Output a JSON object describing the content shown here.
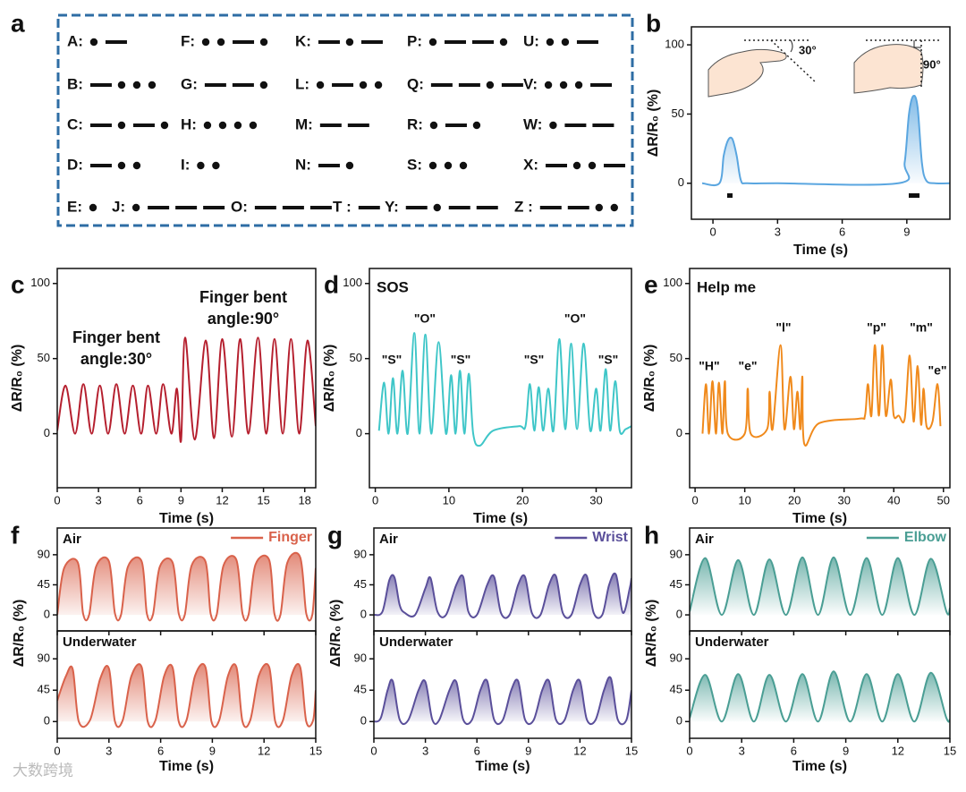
{
  "morse": {
    "panel_label": "a",
    "entries": [
      {
        "label": "A:",
        "code": ".-"
      },
      {
        "label": "B:",
        "code": "-..."
      },
      {
        "label": "C:",
        "code": "-.-."
      },
      {
        "label": "D:",
        "code": "-.."
      },
      {
        "label": "F:",
        "code": "..-."
      },
      {
        "label": "G:",
        "code": "--."
      },
      {
        "label": "H:",
        "code": "...."
      },
      {
        "label": "I:",
        "code": ".."
      },
      {
        "label": "K:",
        "code": "-.-"
      },
      {
        "label": "L:",
        "code": ".-.."
      },
      {
        "label": "M:",
        "code": "--"
      },
      {
        "label": "N:",
        "code": "-."
      },
      {
        "label": "P:",
        "code": ".--."
      },
      {
        "label": "Q:",
        "code": "--.-"
      },
      {
        "label": "R:",
        "code": ".-."
      },
      {
        "label": "S:",
        "code": "..."
      },
      {
        "label": "U:",
        "code": "..-"
      },
      {
        "label": "V:",
        "code": "...-"
      },
      {
        "label": "W:",
        "code": ".--"
      },
      {
        "label": "X:",
        "code": "-..-"
      },
      {
        "label": "E:",
        "code": "."
      },
      {
        "label": "J:",
        "code": ".---"
      },
      {
        "label": "O:",
        "code": "---"
      },
      {
        "label": "T :",
        "code": "-"
      },
      {
        "label": "Y:",
        "code": "-.--"
      },
      {
        "label": "Z :",
        "code": "--.."
      }
    ]
  },
  "watermark": "大数跨境",
  "chart_data": [
    {
      "type": "line",
      "panel_label": "b",
      "color": "#5aa6e0",
      "fill": true,
      "xlabel": "Time (s)",
      "ylabel": "ΔR/R₀ (%)",
      "xlim": [
        -1,
        11
      ],
      "xticks": [
        0,
        3,
        6,
        9
      ],
      "ylim": [
        -26,
        113
      ],
      "yticks": [
        0,
        50,
        100
      ],
      "angles": [
        "30°",
        "90°"
      ],
      "x": [
        -0.5,
        0.3,
        0.5,
        0.7,
        0.9,
        1.1,
        1.3,
        1.6,
        3,
        8.6,
        8.9,
        9.1,
        9.3,
        9.5,
        9.7,
        9.9,
        10.3,
        11
      ],
      "values": [
        0,
        0,
        20,
        31,
        32,
        20,
        2,
        0,
        0,
        0,
        15,
        50,
        63,
        55,
        15,
        2,
        0,
        0
      ]
    },
    {
      "type": "line",
      "panel_label": "c",
      "color": "#b51f2e",
      "xlabel": "Time (s)",
      "ylabel": "ΔR/R₀ (%)",
      "xlim": [
        0,
        18.8
      ],
      "xticks": [
        0,
        3,
        6,
        9,
        12,
        15,
        18
      ],
      "ylim": [
        -36,
        110
      ],
      "yticks": [
        0,
        50,
        100
      ],
      "annotations": [
        [
          "Finger bent",
          "angle:30°"
        ],
        [
          "Finger bent",
          "angle:90°"
        ]
      ],
      "x": [
        0,
        0.6,
        1.3,
        1.9,
        2.5,
        3.1,
        3.7,
        4.3,
        4.9,
        5.5,
        6.1,
        6.6,
        7.2,
        7.7,
        8.3,
        8.7,
        9.0,
        9.3,
        10.0,
        10.8,
        11.4,
        12.0,
        12.7,
        13.3,
        13.9,
        14.6,
        15.2,
        15.8,
        16.4,
        17.0,
        17.6,
        18.2,
        18.8
      ],
      "values": [
        2,
        32,
        0,
        33,
        0,
        32,
        0,
        33,
        0,
        32,
        0,
        32,
        0,
        33,
        0,
        30,
        -5,
        64,
        -4,
        62,
        -3,
        63,
        -2,
        63,
        0,
        64,
        0,
        63,
        0,
        63,
        0,
        62,
        5
      ]
    },
    {
      "type": "line",
      "panel_label": "d",
      "title": "SOS",
      "color": "#3fc6c8",
      "xlabel": "Time (s)",
      "ylabel": "ΔR/R₀ (%)",
      "xlim": [
        -0.8,
        34.8
      ],
      "xticks": [
        0,
        10,
        20,
        30
      ],
      "ylim": [
        -36,
        110
      ],
      "yticks": [
        0,
        50,
        100
      ],
      "annotations": [
        "\"S\"",
        "\"O\"",
        "\"S\"",
        "\"S\"",
        "\"O\"",
        "\"S\""
      ],
      "x": [
        0.5,
        1.2,
        1.8,
        2.4,
        3.0,
        3.7,
        4.4,
        5.3,
        6.0,
        6.8,
        7.6,
        8.6,
        9.6,
        10.3,
        10.9,
        11.5,
        12.1,
        12.7,
        13.3,
        14.2,
        16,
        19.5,
        20.4,
        21.0,
        21.6,
        22.2,
        22.8,
        23.5,
        24.2,
        25.0,
        25.8,
        26.6,
        27.4,
        28.3,
        29.2,
        30.0,
        30.6,
        31.3,
        31.9,
        32.6,
        33.2,
        34.0,
        34.8
      ],
      "values": [
        2,
        34,
        0,
        37,
        0,
        42,
        0,
        67,
        0,
        66,
        0,
        61,
        0,
        39,
        0,
        42,
        0,
        40,
        0,
        -8,
        2,
        5,
        5,
        33,
        2,
        31,
        2,
        30,
        2,
        63,
        3,
        60,
        3,
        60,
        2,
        30,
        2,
        43,
        2,
        35,
        2,
        3,
        5
      ]
    },
    {
      "type": "line",
      "panel_label": "e",
      "title": "Help me",
      "color": "#f08a1c",
      "xlabel": "Time (s)",
      "ylabel": "ΔR/R₀ (%)",
      "xlim": [
        -1.1,
        51.3
      ],
      "xticks": [
        0,
        10,
        20,
        30,
        40,
        50
      ],
      "ylim": [
        -36,
        110
      ],
      "yticks": [
        0,
        50,
        100
      ],
      "annotations": [
        "\"H\"",
        "\"e\"",
        "\"l\"",
        "\"p\"",
        "\"m\"",
        "\"e\""
      ],
      "x": [
        1.5,
        2.2,
        2.8,
        3.5,
        4.2,
        4.8,
        5.5,
        6.0,
        6.6,
        10.0,
        10.6,
        11.2,
        14.5,
        15.0,
        15.6,
        17.2,
        18.0,
        19.2,
        19.9,
        20.6,
        21.2,
        21.6,
        22,
        25,
        33,
        34.2,
        34.8,
        35.5,
        36.2,
        37.0,
        37.7,
        38.4,
        39.4,
        40.0,
        41.0,
        42.2,
        43.2,
        44.0,
        44.8,
        45.5,
        46.0,
        46.6,
        47.8,
        48.8,
        49.4
      ],
      "values": [
        0,
        33,
        0,
        35,
        0,
        34,
        0,
        35,
        0,
        0,
        30,
        0,
        3,
        28,
        3,
        59,
        3,
        38,
        3,
        28,
        3,
        38,
        -7,
        7,
        10,
        12,
        33,
        12,
        59,
        12,
        59,
        12,
        36,
        12,
        12,
        10,
        52,
        8,
        45,
        6,
        30,
        5,
        8,
        33,
        5
      ]
    },
    {
      "type": "area",
      "panel_label": "f",
      "legend": "Finger",
      "color": "#d9624b",
      "xlabel": "Time (s)",
      "ylabel": "ΔR/R₀ (%)",
      "xlim": [
        0,
        15
      ],
      "xticks": [
        0,
        3,
        6,
        9,
        12,
        15
      ],
      "panels": [
        {
          "label": "Air",
          "ylim": [
            -24,
            130
          ],
          "yticks": [
            0,
            45,
            90
          ],
          "x": [
            0,
            0.4,
            1.2,
            1.5,
            1.85,
            2.25,
            3.0,
            3.35,
            3.7,
            4.1,
            4.9,
            5.2,
            5.55,
            5.95,
            6.7,
            7.05,
            7.4,
            7.8,
            8.6,
            8.9,
            9.25,
            9.65,
            10.4,
            10.75,
            11.1,
            11.5,
            12.3,
            12.6,
            12.95,
            13.35,
            14.1,
            14.45,
            14.8,
            15
          ],
          "values": [
            0,
            70,
            78,
            2,
            0,
            72,
            80,
            2,
            0,
            72,
            80,
            2,
            0,
            72,
            78,
            2,
            0,
            74,
            80,
            2,
            0,
            74,
            82,
            2,
            0,
            75,
            82,
            2,
            0,
            78,
            86,
            2,
            0,
            70
          ]
        },
        {
          "label": "Underwater",
          "ylim": [
            -24,
            130
          ],
          "yticks": [
            0,
            45,
            90
          ],
          "x": [
            0,
            0.5,
            0.9,
            1.25,
            1.9,
            2.5,
            3.0,
            3.35,
            3.8,
            4.3,
            4.9,
            5.25,
            5.7,
            6.2,
            6.7,
            7.05,
            7.5,
            8.0,
            8.6,
            8.95,
            9.4,
            9.9,
            10.4,
            10.75,
            11.2,
            11.7,
            12.3,
            12.65,
            13.1,
            13.6,
            14.1,
            14.45,
            14.85,
            15
          ],
          "values": [
            30,
            65,
            75,
            0,
            2,
            62,
            76,
            0,
            2,
            65,
            78,
            0,
            2,
            65,
            77,
            0,
            2,
            66,
            78,
            0,
            2,
            65,
            78,
            0,
            2,
            66,
            78,
            0,
            2,
            66,
            78,
            0,
            2,
            45
          ]
        }
      ]
    },
    {
      "type": "area",
      "panel_label": "g",
      "legend": "Wrist",
      "color": "#5a4f9a",
      "xlabel": "Time (s)",
      "ylabel": "ΔR/R₀ (%)",
      "xlim": [
        0,
        15
      ],
      "xticks": [
        0,
        3,
        6,
        9,
        12,
        15
      ],
      "panels": [
        {
          "label": "Air",
          "ylim": [
            -24,
            130
          ],
          "yticks": [
            0,
            45,
            90
          ],
          "x": [
            0,
            0.5,
            0.9,
            1.2,
            1.5,
            1.8,
            2.4,
            3.0,
            3.3,
            3.7,
            4.2,
            4.8,
            5.2,
            5.5,
            6.0,
            6.6,
            7.0,
            7.4,
            7.9,
            8.4,
            8.8,
            9.2,
            9.7,
            10.2,
            10.6,
            11.0,
            11.5,
            12.0,
            12.4,
            12.8,
            13.3,
            13.7,
            14.1,
            14.5,
            14.9,
            15
          ],
          "values": [
            0,
            5,
            52,
            56,
            15,
            3,
            0,
            40,
            55,
            5,
            0,
            45,
            57,
            5,
            0,
            45,
            57,
            3,
            0,
            45,
            57,
            3,
            0,
            45,
            58,
            3,
            0,
            45,
            58,
            3,
            0,
            45,
            60,
            3,
            40,
            55
          ]
        },
        {
          "label": "Underwater",
          "ylim": [
            -24,
            130
          ],
          "yticks": [
            0,
            45,
            90
          ],
          "x": [
            0,
            0.4,
            0.8,
            1.1,
            1.5,
            2.0,
            2.6,
            3.0,
            3.4,
            3.8,
            4.4,
            4.8,
            5.2,
            5.7,
            6.2,
            6.6,
            7.0,
            7.5,
            8.0,
            8.4,
            8.8,
            9.3,
            9.8,
            10.2,
            10.6,
            11.1,
            11.6,
            12.0,
            12.4,
            12.9,
            13.4,
            13.8,
            14.2,
            14.7,
            15
          ],
          "values": [
            0,
            5,
            45,
            58,
            3,
            2,
            45,
            57,
            3,
            2,
            45,
            57,
            3,
            2,
            45,
            58,
            3,
            2,
            45,
            58,
            3,
            2,
            45,
            58,
            3,
            2,
            45,
            58,
            3,
            2,
            45,
            62,
            3,
            2,
            45
          ]
        }
      ]
    },
    {
      "type": "area",
      "panel_label": "h",
      "legend": "Elbow",
      "color": "#4a9e94",
      "xlabel": "Time (s)",
      "ylabel": "ΔR/R₀ (%)",
      "xlim": [
        0,
        15
      ],
      "xticks": [
        0,
        3,
        6,
        9,
        12,
        15
      ],
      "panels": [
        {
          "label": "Air",
          "ylim": [
            -24,
            130
          ],
          "yticks": [
            0,
            45,
            90
          ],
          "x": [
            0,
            0.9,
            1.85,
            2.8,
            3.7,
            4.6,
            5.55,
            6.5,
            7.4,
            8.3,
            9.25,
            10.2,
            11.1,
            12.0,
            12.95,
            13.9,
            14.8,
            15
          ],
          "values": [
            5,
            85,
            0,
            82,
            0,
            83,
            0,
            86,
            0,
            86,
            0,
            85,
            0,
            85,
            0,
            84,
            5,
            10
          ]
        },
        {
          "label": "Underwater",
          "ylim": [
            -24,
            130
          ],
          "yticks": [
            0,
            45,
            90
          ],
          "x": [
            0,
            0.9,
            1.85,
            2.8,
            3.7,
            4.6,
            5.55,
            6.5,
            7.4,
            8.3,
            9.25,
            10.2,
            11.1,
            12.0,
            12.95,
            13.9,
            14.8,
            15
          ],
          "values": [
            5,
            67,
            0,
            68,
            0,
            67,
            0,
            68,
            0,
            72,
            0,
            68,
            0,
            68,
            0,
            70,
            5,
            3
          ]
        }
      ]
    }
  ]
}
